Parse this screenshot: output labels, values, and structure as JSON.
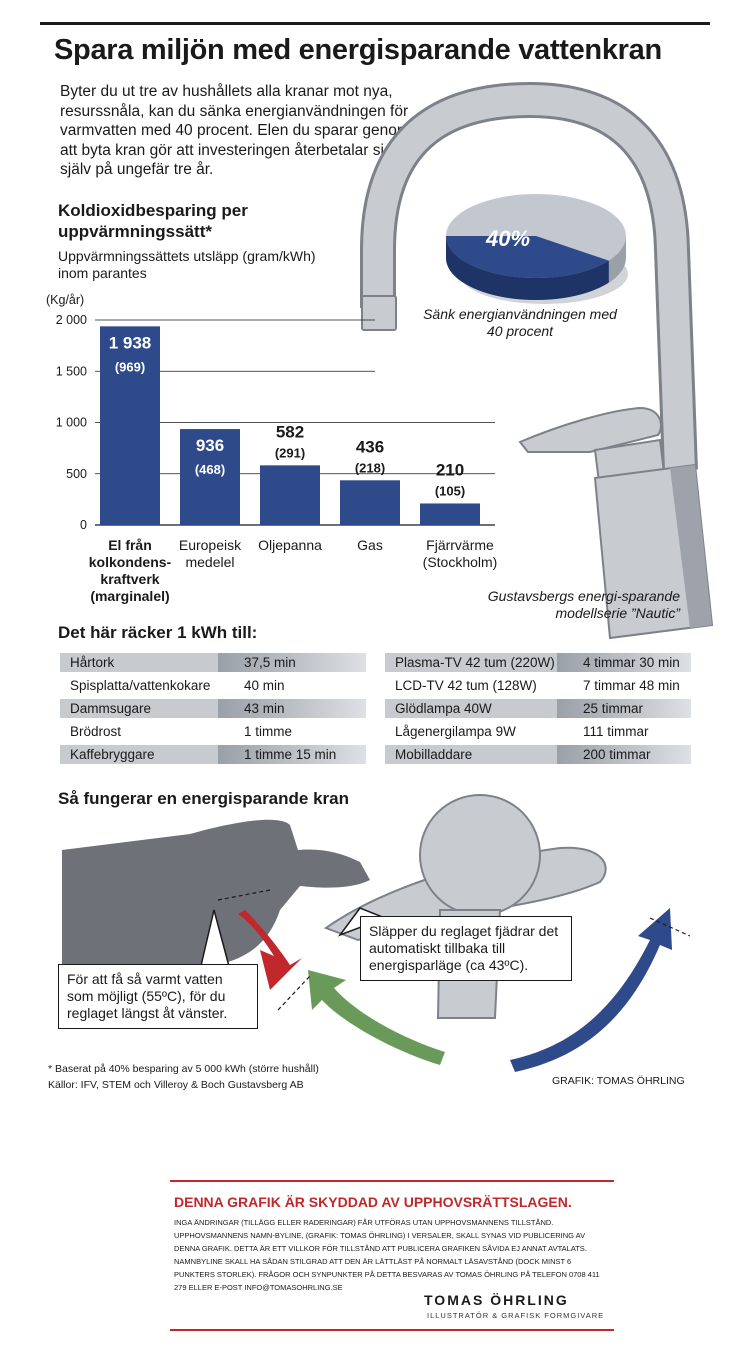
{
  "title": "Spara miljön med energisparande vattenkran",
  "intro": "Byter du ut tre av hushållets alla kranar mot nya, resurssnåla, kan du sänka energianvändningen för varmvatten med 40 procent. Elen du sparar genom att byta kran gör att investeringen återbetalar sig själv på ungefär tre år.",
  "pie": {
    "label": "40%",
    "value": 40,
    "caption": "Sänk energianvändningen med 40 procent",
    "colors": {
      "highlight": "#2e4a8a",
      "rest": "#c3c8d0"
    }
  },
  "faucet_caption": "Gustavsbergs energi-sparande modellserie ”Nautic”",
  "chart_data": {
    "type": "bar",
    "title": "Koldioxidbesparing per uppvärmningssätt*",
    "subtitle": "Uppvärmningssättets utsläpp (gram/kWh) inom parantes",
    "ylabel": "(Kg/år)",
    "ylim": [
      0,
      2000
    ],
    "yticks": [
      0,
      500,
      1000,
      1500,
      2000
    ],
    "ytick_labels": [
      "0",
      "500",
      "1 000",
      "1 500",
      "2 000"
    ],
    "categories": [
      "El från kolkondens-kraftverk (marginalel)",
      "Europeisk medelel",
      "Oljepanna",
      "Gas",
      "Fjärrvärme (Stockholm)"
    ],
    "values": [
      1938,
      936,
      582,
      436,
      210
    ],
    "value_labels": [
      "1 938",
      "936",
      "582",
      "436",
      "210"
    ],
    "secondary_labels": [
      "(969)",
      "(468)",
      "(291)",
      "(218)",
      "(105)"
    ],
    "bar_color": "#2e4a8a",
    "grid": true
  },
  "kwh": {
    "heading": "Det här räcker 1 kWh till:",
    "left": [
      {
        "name": "Hårtork",
        "value": "37,5 min"
      },
      {
        "name": "Spisplatta/vattenkokare",
        "value": "40 min"
      },
      {
        "name": "Dammsugare",
        "value": "43 min"
      },
      {
        "name": "Brödrost",
        "value": "1 timme"
      },
      {
        "name": "Kaffebryggare",
        "value": "1 timme 15 min"
      }
    ],
    "right": [
      {
        "name": "Plasma-TV 42 tum (220W)",
        "value": "4 timmar 30 min"
      },
      {
        "name": "LCD-TV 42 tum (128W)",
        "value": "7 timmar 48 min"
      },
      {
        "name": "Glödlampa 40W",
        "value": "25 timmar"
      },
      {
        "name": "Lågenergilampa 9W",
        "value": "111 timmar"
      },
      {
        "name": "Mobilladdare",
        "value": "200 timmar"
      }
    ]
  },
  "how": {
    "heading": "Så fungerar en energisparande kran",
    "note_left": "För att få så varmt vatten som möjligt (55ºC), för du reglaget längst åt vänster.",
    "note_right": "Släpper du reglaget fjädrar det automatiskt tillbaka till energisparläge (ca 43ºC).",
    "colors": {
      "hot": "#c0282c",
      "eco": "#6a9a5a",
      "cold": "#2e4a8a"
    }
  },
  "footnote": "* Baserat på 40% besparing av 5 000 kWh (större hushåll)",
  "sources": "Källor: IFV, STEM och Villeroy & Boch Gustavsberg AB",
  "credit": "GRAFIK: TOMAS ÖHRLING",
  "copyright": {
    "heading": "DENNA GRAFIK ÄR SKYDDAD AV UPPHOVSRÄTTSLAGEN.",
    "text": "Inga ändringar (tillägg eller raderingar) får utföras utan upphovsmannens tillstånd. Upphovsmannens namn-byline, (GRAFIK: TOMAS ÖHRLING) i versaler, skall synas vid publicering av denna grafik. Detta är ett villkor för tillstånd att publicera grafiken såvida ej annat avtalats. Namnbyline skall ha sådan stilgrad att den är lättläst på normalt läsavstånd (dock minst 6 punkters storlek). Frågor och synpunkter på detta besvaras av Tomas Öhrling på telefon 0708 411 279 eller e-post info@tomasohrling.se",
    "brand": "TOMAS ÖHRLING",
    "brand_sub": "ILLUSTRATÖR & GRAFISK FORMGIVARE"
  }
}
